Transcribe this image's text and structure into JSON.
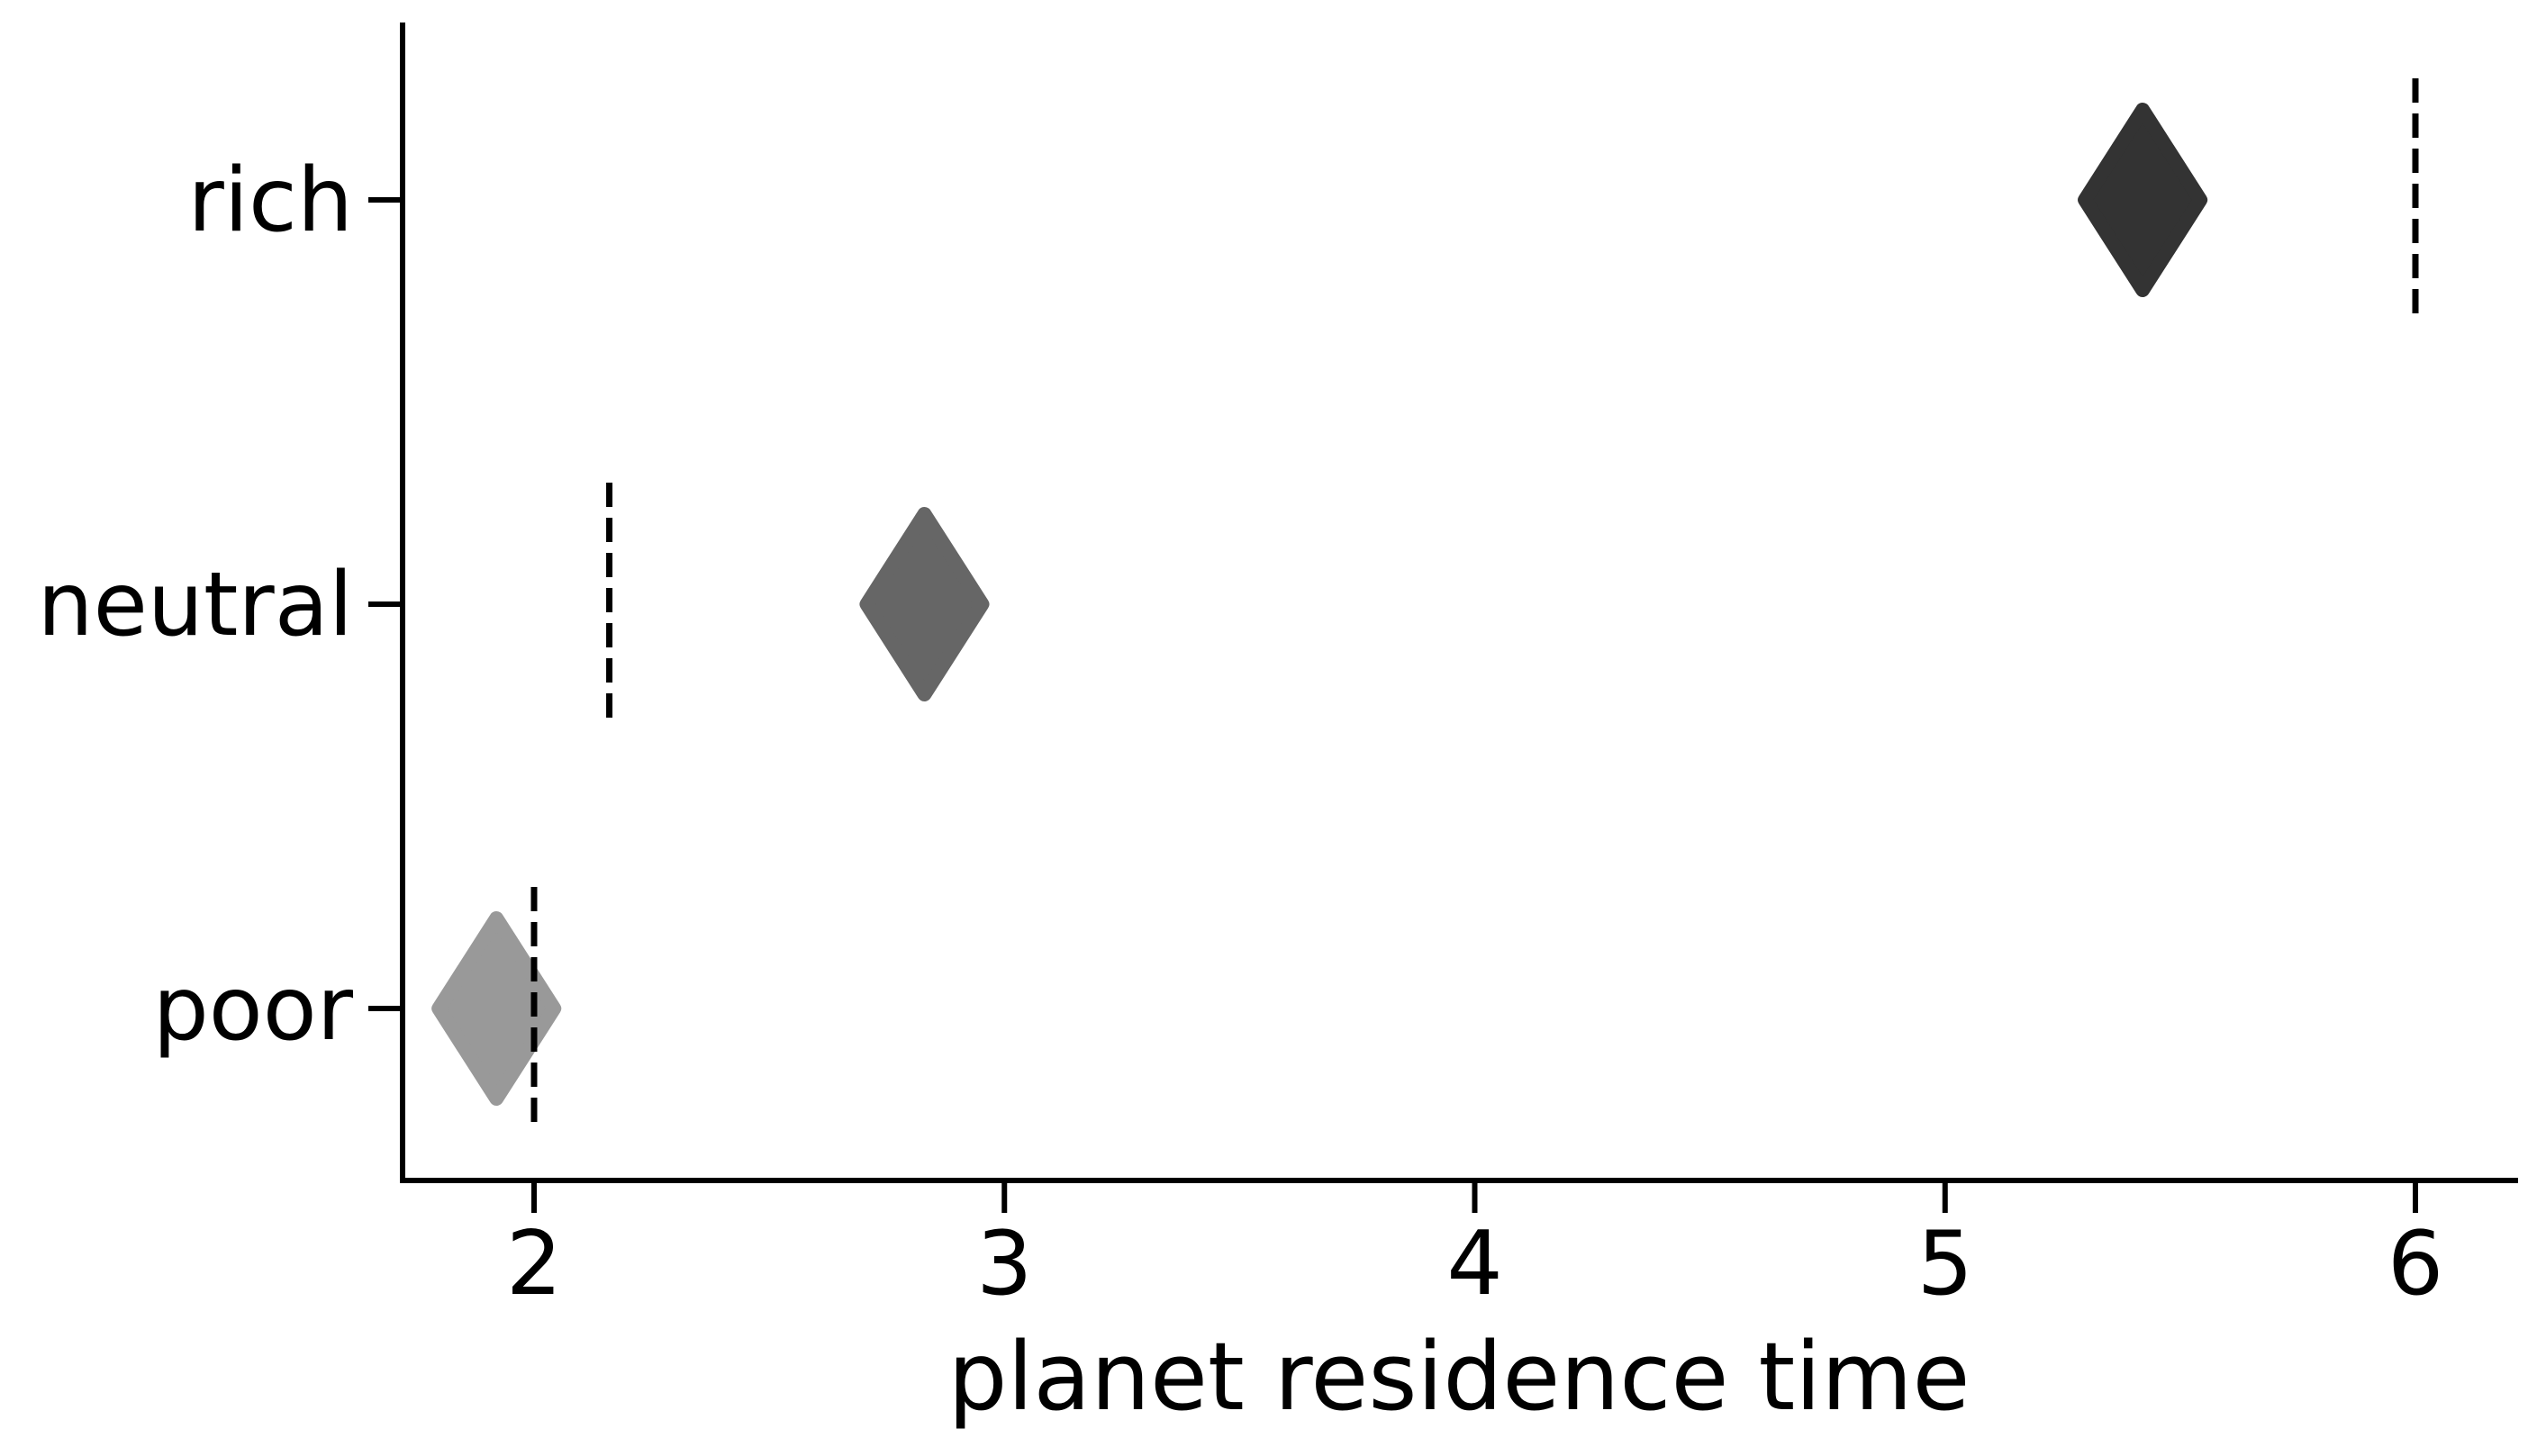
{
  "chart_data": {
    "type": "scatter",
    "title": "",
    "xlabel": "planet residence time",
    "ylabel": "",
    "xlim": [
      1.72,
      6.21
    ],
    "xticks": [
      2,
      3,
      4,
      5,
      6
    ],
    "xtick_labels": [
      "2",
      "3",
      "4",
      "5",
      "6"
    ],
    "categories": [
      "rich",
      "neutral",
      "poor"
    ],
    "grid": false,
    "legend": "none",
    "points": [
      {
        "category": "rich",
        "x": 5.42,
        "color": "#333333"
      },
      {
        "category": "neutral",
        "x": 2.83,
        "color": "#666666"
      },
      {
        "category": "poor",
        "x": 1.92,
        "color": "#999999"
      }
    ],
    "reference_lines": [
      {
        "category": "rich",
        "x": 6.0
      },
      {
        "category": "neutral",
        "x": 2.16
      },
      {
        "category": "poor",
        "x": 2.0
      }
    ]
  }
}
